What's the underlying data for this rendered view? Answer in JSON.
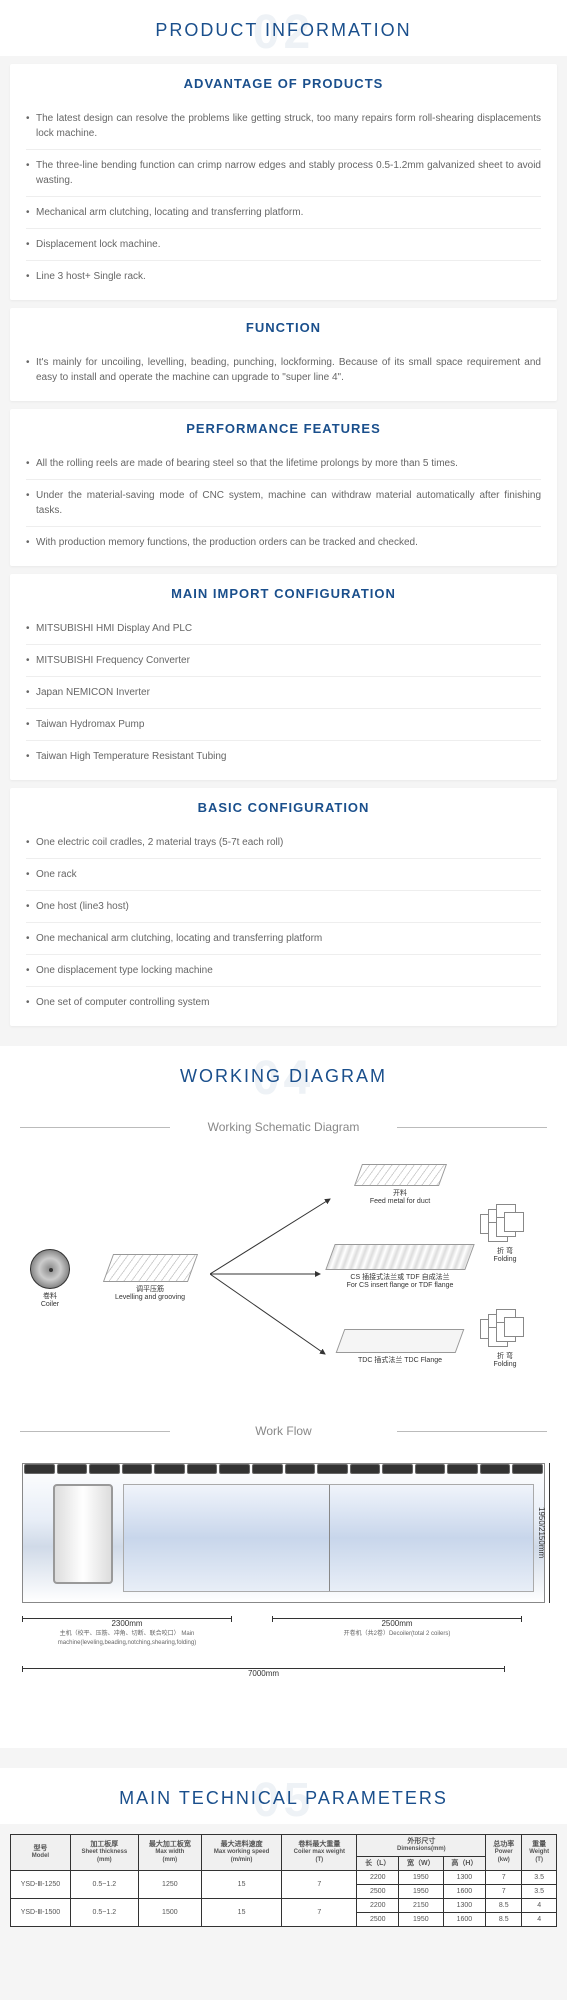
{
  "headers": {
    "product_info": {
      "bgnum": "02",
      "title": "PRODUCT INFORMATION"
    },
    "working_diagram": {
      "bgnum": "04",
      "title": "WORKING DIAGRAM"
    },
    "params": {
      "bgnum": "05",
      "title": "MAIN TECHNICAL PARAMETERS"
    }
  },
  "cards": {
    "advantage": {
      "title": "ADVANTAGE OF PRODUCTS",
      "items": [
        "The latest design can resolve the problems like getting struck, too many repairs form roll-shearing displacements lock machine.",
        "The three-line bending function can crimp narrow edges and stably process 0.5-1.2mm galvanized sheet to avoid wasting.",
        "Mechanical arm clutching, locating and transferring platform.",
        "Displacement lock machine.",
        "Line 3 host+ Single rack."
      ]
    },
    "function": {
      "title": "FUNCTION",
      "items": [
        "It's mainly for uncoiling, levelling, beading, punching, lockforming. Because of its small space requirement and easy to install and operate the machine can upgrade to \"super line 4\"."
      ]
    },
    "performance": {
      "title": "PERFORMANCE FEATURES",
      "items": [
        "All the rolling reels are made of bearing steel so that the lifetime prolongs by more than 5 times.",
        "Under the material-saving mode of CNC system, machine can withdraw material automatically after finishing tasks.",
        "With production memory functions, the production orders can be tracked and checked."
      ]
    },
    "importcfg": {
      "title": "MAIN IMPORT CONFIGURATION",
      "items": [
        "MITSUBISHI HMI Display And PLC",
        "MITSUBISHI Frequency Converter",
        "Japan NEMICON Inverter",
        "Taiwan Hydromax Pump",
        "Taiwan High Temperature Resistant Tubing"
      ]
    },
    "basiccfg": {
      "title": "BASIC CONFIGURATION",
      "items": [
        "One electric coil cradles, 2 material trays (5-7t each roll)",
        "One rack",
        "One host (line3 host)",
        "One mechanical arm clutching, locating and transferring platform",
        "One displacement type locking machine",
        "One set of computer controlling system"
      ]
    }
  },
  "diagram": {
    "schematic_label": "Working Schematic Diagram",
    "workflow_label": "Work Flow",
    "coiler": {
      "cn": "卷料",
      "en": "Coiler"
    },
    "level": {
      "cn": "调平压筋",
      "en": "Levelling and grooving"
    },
    "feed": {
      "cn": "开料",
      "en": "Feed metal for duct"
    },
    "cs": {
      "cn": "CS 插接式法兰或 TDF 自成法兰",
      "en": "For CS insert flange or TDF flange"
    },
    "tdc": {
      "cn": "TDC 插式法兰 TDC Flange"
    },
    "fold": {
      "cn": "折 弯",
      "en": "Folding"
    },
    "dims": {
      "d2300": "2300mm",
      "d2300sub": "主机（校平、压筋、冲角、切断、联合咬口）\nMain machine(leveling,beading,notching,shearing,folding)",
      "d2500": "2500mm",
      "d2500sub": "开卷机（共2卷）Decoiler(total 2 coilers)",
      "d7000": "7000mm",
      "dh": "1950/2150mm"
    }
  },
  "params_table": {
    "head": {
      "model": {
        "cn": "型号",
        "en": "Model"
      },
      "thick": {
        "cn": "加工板厚",
        "en": "Sheet thickness",
        "unit": "(mm)"
      },
      "width": {
        "cn": "最大加工板宽",
        "en": "Max width",
        "unit": "(mm)"
      },
      "speed": {
        "cn": "最大进料速度",
        "en": "Max working speed",
        "unit": "(m/min)"
      },
      "coiler": {
        "cn": "卷料最大重量",
        "en": "Coiler max weight",
        "unit": "(T)"
      },
      "dims": {
        "cn": "外形尺寸",
        "en": "Dimensions(mm)",
        "L": "长（L）",
        "W": "宽（W）",
        "H": "高（H）"
      },
      "power": {
        "cn": "总功率",
        "en": "Power",
        "unit": "(kw)"
      },
      "weight": {
        "cn": "重量",
        "en": "Weight",
        "unit": "(T)"
      }
    },
    "rows": [
      {
        "model": "YSD-Ⅲ-1250",
        "thick": "0.5~1.2",
        "width": "1250",
        "speed": "15",
        "coiler": "7",
        "dims": [
          [
            "2200",
            "1950",
            "1300"
          ],
          [
            "2500",
            "1950",
            "1600"
          ]
        ],
        "power": [
          "7",
          "7"
        ],
        "weight": [
          "3.5",
          "3.5"
        ]
      },
      {
        "model": "YSD-Ⅲ-1500",
        "thick": "0.5~1.2",
        "width": "1500",
        "speed": "15",
        "coiler": "7",
        "dims": [
          [
            "2200",
            "2150",
            "1300"
          ],
          [
            "2500",
            "1950",
            "1600"
          ]
        ],
        "power": [
          "8.5",
          "8.5"
        ],
        "weight": [
          "4",
          "4"
        ]
      }
    ]
  },
  "colors": {
    "accent": "#1a4f8c",
    "text": "#555",
    "border": "#eee"
  }
}
